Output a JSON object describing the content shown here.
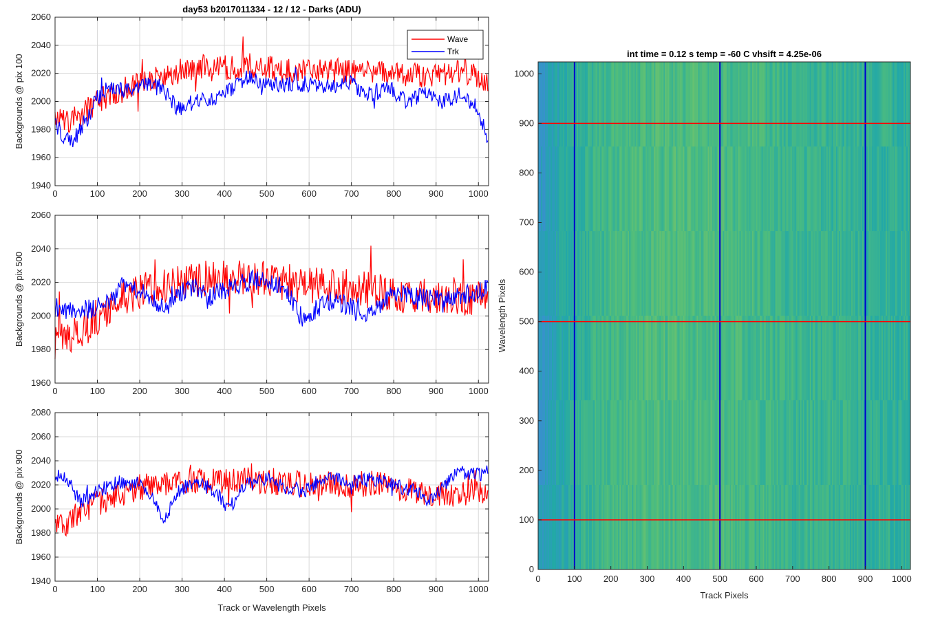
{
  "figure": {
    "title": "day53 b2017011334 - 12 / 12 - Darks (ADU)",
    "colors": {
      "wave": "#ff0000",
      "trk": "#0000ff",
      "grid": "#d9d9d9"
    }
  },
  "chart_data": [
    {
      "type": "line",
      "title": "day53 b2017011334 - 12 / 12 - Darks (ADU)",
      "xlabel": "",
      "ylabel": "Backgrounds @ pix 100",
      "xlim": [
        0,
        1024
      ],
      "ylim": [
        1940,
        2060
      ],
      "xticks": [
        0,
        100,
        200,
        300,
        400,
        500,
        600,
        700,
        800,
        900,
        1000
      ],
      "yticks": [
        1940,
        1960,
        1980,
        2000,
        2020,
        2040,
        2060
      ],
      "grid": true,
      "legend": "top-right",
      "series": [
        {
          "name": "Wave",
          "color": "#ff0000",
          "x": [
            0,
            25,
            50,
            80,
            100,
            130,
            160,
            200,
            250,
            300,
            350,
            400,
            450,
            500,
            550,
            600,
            650,
            700,
            750,
            800,
            850,
            900,
            950,
            1000,
            1023
          ],
          "y": [
            1990,
            1985,
            1988,
            1995,
            2000,
            2005,
            2008,
            2012,
            2018,
            2022,
            2025,
            2024,
            2026,
            2024,
            2022,
            2023,
            2022,
            2021,
            2022,
            2020,
            2019,
            2019,
            2021,
            2018,
            2012
          ]
        },
        {
          "name": "Trk",
          "color": "#0000ff",
          "x": [
            0,
            20,
            40,
            60,
            80,
            100,
            130,
            160,
            200,
            250,
            290,
            330,
            380,
            420,
            450,
            480,
            520,
            560,
            600,
            650,
            690,
            740,
            790,
            830,
            870,
            920,
            960,
            1000,
            1023
          ],
          "y": [
            1985,
            1975,
            1970,
            1980,
            1990,
            2003,
            2012,
            2008,
            2012,
            2010,
            1995,
            2000,
            2003,
            2008,
            2018,
            2015,
            2012,
            2013,
            2012,
            2010,
            2015,
            2005,
            2010,
            2000,
            2005,
            2000,
            2005,
            1995,
            1970
          ]
        }
      ]
    },
    {
      "type": "line",
      "title": "",
      "xlabel": "",
      "ylabel": "Backgrounds @ pix 500",
      "xlim": [
        0,
        1024
      ],
      "ylim": [
        1960,
        2060
      ],
      "xticks": [
        0,
        100,
        200,
        300,
        400,
        500,
        600,
        700,
        800,
        900,
        1000
      ],
      "yticks": [
        1960,
        1980,
        2000,
        2020,
        2040,
        2060
      ],
      "grid": true,
      "series": [
        {
          "name": "Wave",
          "color": "#ff0000",
          "x": [
            0,
            25,
            50,
            80,
            100,
            150,
            200,
            250,
            300,
            350,
            400,
            450,
            500,
            550,
            600,
            650,
            700,
            750,
            800,
            850,
            900,
            950,
            1000,
            1023
          ],
          "y": [
            1985,
            1985,
            1990,
            1995,
            2000,
            2010,
            2015,
            2018,
            2020,
            2022,
            2024,
            2023,
            2022,
            2020,
            2018,
            2018,
            2017,
            2015,
            2013,
            2012,
            2012,
            2011,
            2010,
            2008
          ]
        },
        {
          "name": "Trk",
          "color": "#0000ff",
          "x": [
            0,
            50,
            100,
            130,
            160,
            200,
            260,
            300,
            330,
            360,
            390,
            430,
            470,
            500,
            540,
            570,
            590,
            620,
            660,
            700,
            730,
            770,
            800,
            850,
            900,
            950,
            1000,
            1023
          ],
          "y": [
            2005,
            2003,
            2005,
            2008,
            2018,
            2015,
            2005,
            2015,
            2018,
            2010,
            2015,
            2018,
            2022,
            2020,
            2018,
            2005,
            1995,
            2005,
            2010,
            2005,
            2000,
            2005,
            2015,
            2012,
            2010,
            2012,
            2015,
            2018
          ]
        }
      ]
    },
    {
      "type": "line",
      "title": "",
      "xlabel": "Track or Wavelength Pixels",
      "ylabel": "Backgrounds @ pix 900",
      "xlim": [
        0,
        1024
      ],
      "ylim": [
        1940,
        2080
      ],
      "xticks": [
        0,
        100,
        200,
        300,
        400,
        500,
        600,
        700,
        800,
        900,
        1000
      ],
      "yticks": [
        1940,
        1960,
        1980,
        2000,
        2020,
        2040,
        2060,
        2080
      ],
      "grid": true,
      "series": [
        {
          "name": "Wave",
          "color": "#ff0000",
          "x": [
            0,
            25,
            50,
            80,
            100,
            150,
            200,
            250,
            300,
            350,
            400,
            450,
            500,
            550,
            600,
            650,
            700,
            750,
            800,
            850,
            900,
            950,
            1000,
            1023
          ],
          "y": [
            1990,
            1985,
            1995,
            2000,
            2005,
            2012,
            2018,
            2020,
            2022,
            2024,
            2023,
            2024,
            2023,
            2022,
            2020,
            2021,
            2020,
            2021,
            2018,
            2015,
            2012,
            2013,
            2015,
            2010
          ]
        },
        {
          "name": "Trk",
          "color": "#0000ff",
          "x": [
            0,
            30,
            60,
            100,
            150,
            200,
            230,
            260,
            290,
            330,
            380,
            410,
            450,
            500,
            540,
            590,
            620,
            650,
            700,
            750,
            800,
            850,
            880,
            900,
            930,
            960,
            1000,
            1023
          ],
          "y": [
            2028,
            2025,
            2005,
            2015,
            2022,
            2020,
            2010,
            1990,
            2015,
            2022,
            2015,
            2000,
            2020,
            2025,
            2018,
            2015,
            2020,
            2025,
            2022,
            2025,
            2020,
            2015,
            2008,
            2012,
            2025,
            2030,
            2028,
            2032
          ]
        }
      ]
    },
    {
      "type": "heatmap",
      "title": "int time = 0.12 s   temp = -60 C   vhsift = 4.25e-06",
      "xlabel": "Track Pixels",
      "ylabel": "Wavelength Pixels",
      "xlim": [
        0,
        1024
      ],
      "ylim": [
        0,
        1024
      ],
      "xticks": [
        0,
        100,
        200,
        300,
        400,
        500,
        600,
        700,
        800,
        900,
        1000
      ],
      "yticks": [
        0,
        100,
        200,
        300,
        400,
        500,
        600,
        700,
        800,
        900,
        1000
      ],
      "colormap": [
        "#3a8fd0",
        "#22a8a8",
        "#4fbd7c",
        "#9cc95a"
      ],
      "column_profile": {
        "x": [
          0,
          40,
          100,
          200,
          300,
          400,
          500,
          600,
          700,
          800,
          900,
          1000,
          1024
        ],
        "intensity": [
          0.1,
          0.25,
          0.45,
          0.6,
          0.62,
          0.64,
          0.62,
          0.58,
          0.52,
          0.5,
          0.48,
          0.45,
          0.42
        ]
      },
      "vlines": {
        "x": [
          100,
          500,
          900
        ],
        "color": "#0000cc"
      },
      "hlines": {
        "y": [
          100,
          500,
          900
        ],
        "color": "#ff0000"
      }
    }
  ]
}
